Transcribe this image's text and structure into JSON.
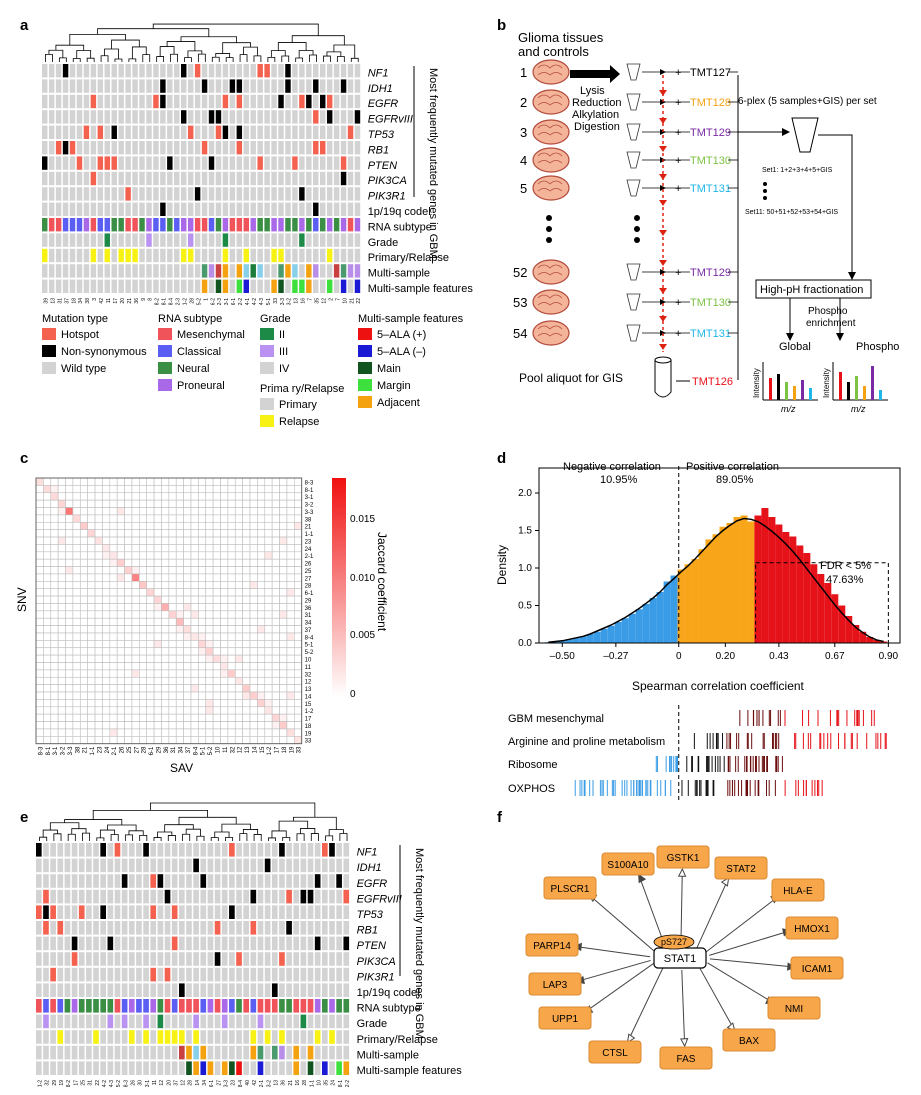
{
  "panel_labels": {
    "a": "a",
    "b": "b",
    "c": "c",
    "d": "d",
    "e": "e",
    "f": "f"
  },
  "colors": {
    "hotspot": "#f4614f",
    "nonsyn": "#000000",
    "wild": "#d3d3d3",
    "mesenchymal": "#f0545a",
    "classical": "#5a5ef2",
    "neural": "#3b8f45",
    "proneural": "#a868e8",
    "gradeII": "#1d8a47",
    "gradeIII": "#b992f2",
    "gradeIV": "#d3d3d3",
    "primary": "#d3d3d3",
    "relapse": "#f7f214",
    "ala_pos": "#ee1111",
    "ala_neg": "#1b1bd6",
    "main": "#11541f",
    "margin": "#3ee03e",
    "adjacent": "#f5a211",
    "tmt127": "#000000",
    "tmt128": "#f5a211",
    "tmt129": "#7a2aa3",
    "tmt130": "#7dc242",
    "tmt131": "#1fb6e8",
    "tmt126": "#e8111a",
    "blue": "#3a9ce6",
    "orange": "#f9a519",
    "red": "#e51219",
    "node": "#f7a64a"
  },
  "panel_a": {
    "gene_rows": [
      "NF1",
      "IDH1",
      "EGFR",
      "EGFRvIII",
      "TP53",
      "RB1",
      "PTEN",
      "PIK3CA",
      "PIK3R1"
    ],
    "other_rows": [
      "1p/19q codel",
      "RNA subtype",
      "Grade",
      "Primary/Relapse",
      "Multi-sample",
      "Multi-sample features"
    ],
    "side_title": "Most frequently mutated genes in GBM",
    "sample_labels": [
      "39",
      "13",
      "31",
      "37",
      "18",
      "34",
      "38",
      "3",
      "42",
      "11",
      "17",
      "20",
      "21",
      "36",
      "9",
      "8",
      "8-2",
      "8-1",
      "8-4",
      "2-3",
      "1-2",
      "28",
      "5-2",
      "1",
      "6-2",
      "2-3",
      "3-1",
      "6-1",
      "2-2",
      "4-1",
      "4-2",
      "4-3",
      "5-1",
      "33",
      "3-3",
      "3-2",
      "13",
      "16",
      "7",
      "35",
      "12",
      "2",
      "7",
      "10",
      "21",
      "22"
    ]
  },
  "legend": {
    "mutation_title": "Mutation type",
    "mutation": [
      "Hotspot",
      "Non-synonymous",
      "Wild type"
    ],
    "rna_title": "RNA subtype",
    "rna": [
      "Mesenchymal",
      "Classical",
      "Neural",
      "Proneural"
    ],
    "grade_title": "Grade",
    "grade": [
      "II",
      "III",
      "IV"
    ],
    "pr_title": "Prima ry/Relapse",
    "pr": [
      "Primary",
      "Relapse"
    ],
    "ms_title": "Multi-sample features",
    "ms": [
      "5–ALA (+)",
      "5–ALA (–)",
      "Main",
      "Margin",
      "Adjacent"
    ]
  },
  "panel_b": {
    "title1": "Glioma tissues",
    "title2": "and controls",
    "sample_numbers": [
      "1",
      "2",
      "3",
      "4",
      "5",
      "52",
      "53",
      "54"
    ],
    "steps": [
      "Lysis",
      "Reduction",
      "Alkylation",
      "Digestion"
    ],
    "tmt_top": [
      "TMT127",
      "TMT128",
      "TMT129",
      "TMT130",
      "TMT131"
    ],
    "tmt_bottom": [
      "TMT129",
      "TMT130",
      "TMT131"
    ],
    "tmt_gis": "TMT126",
    "pool": "Pool aliquot for GIS",
    "plex": "6-plex (5 samples+GIS) per set",
    "set1": "Set1: 1+2+3+4+5+GIS",
    "set11": "Set11: 50+51+52+53+54+GIS",
    "fractionation": "High-pH fractionation",
    "phospho_enrich": "Phospho enrichment",
    "global": "Global",
    "phospho": "Phospho",
    "intensity": "Intensity",
    "mz": "m/z"
  },
  "panel_c": {
    "xlabel": "SAV",
    "ylabel": "SNV",
    "colorbar_label": "Jaccard coefficient",
    "colorbar_ticks": [
      "0.015",
      "0.010",
      "0.005",
      "0"
    ],
    "row_labels": [
      "8-3",
      "8-1",
      "3-1",
      "3-2",
      "3-3",
      "38",
      "21",
      "1-1",
      "23",
      "24",
      "2-1",
      "26",
      "25",
      "27",
      "28",
      "6-1",
      "29",
      "36",
      "31",
      "34",
      "37",
      "8-4",
      "5-1",
      "5-2",
      "10",
      "11",
      "32",
      "12",
      "13",
      "14",
      "15",
      "1-2",
      "17",
      "18",
      "19",
      "33"
    ],
    "col_labels": [
      "8-3",
      "8-1",
      "3-1",
      "3-2",
      "3-3",
      "38",
      "21",
      "1-1",
      "23",
      "24",
      "2-1",
      "26",
      "25",
      "27",
      "28",
      "6-1",
      "29",
      "36",
      "31",
      "34",
      "37",
      "8-4",
      "5-1",
      "5-2",
      "10",
      "11",
      "32",
      "12",
      "13",
      "14",
      "15",
      "1-2",
      "17",
      "18",
      "19",
      "33"
    ]
  },
  "chart_data": {
    "type": "bar",
    "title": "",
    "xlabel": "Spearman correlation coefficient",
    "ylabel": "Density",
    "x_ticks": [
      "–0.50",
      "–0.27",
      "0",
      "0.20",
      "0.43",
      "0.67",
      "0.90"
    ],
    "y_ticks": [
      "0.0",
      "0.5",
      "1.0",
      "1.5",
      "2.0"
    ],
    "xlim": [
      -0.6,
      0.95
    ],
    "ylim": [
      0,
      2.2
    ],
    "negative_label": "Negative correlation",
    "negative_pct": "10.95%",
    "positive_label": "Positive correlation",
    "positive_pct": "89.05%",
    "fdr_label": "FDR < 5%",
    "fdr_pct": "47.63%",
    "x": [
      -0.56,
      -0.53,
      -0.5,
      -0.47,
      -0.44,
      -0.41,
      -0.38,
      -0.35,
      -0.32,
      -0.29,
      -0.26,
      -0.23,
      -0.2,
      -0.17,
      -0.14,
      -0.11,
      -0.08,
      -0.05,
      -0.02,
      0.01,
      0.04,
      0.07,
      0.1,
      0.13,
      0.16,
      0.19,
      0.22,
      0.25,
      0.28,
      0.31,
      0.34,
      0.37,
      0.4,
      0.43,
      0.46,
      0.49,
      0.52,
      0.55,
      0.58,
      0.61,
      0.64,
      0.67,
      0.7,
      0.73,
      0.76,
      0.79,
      0.82,
      0.85,
      0.88
    ],
    "values": [
      0.01,
      0.02,
      0.03,
      0.05,
      0.07,
      0.09,
      0.12,
      0.15,
      0.19,
      0.23,
      0.28,
      0.33,
      0.39,
      0.45,
      0.52,
      0.6,
      0.68,
      0.82,
      0.9,
      0.98,
      1.05,
      1.12,
      1.25,
      1.38,
      1.45,
      1.55,
      1.6,
      1.68,
      1.7,
      1.62,
      1.7,
      1.8,
      1.68,
      1.58,
      1.48,
      1.42,
      1.3,
      1.2,
      1.05,
      0.92,
      0.8,
      0.65,
      0.5,
      0.36,
      0.24,
      0.15,
      0.08,
      0.04,
      0.02
    ],
    "density_curve": [
      0.01,
      0.02,
      0.03,
      0.05,
      0.07,
      0.09,
      0.12,
      0.16,
      0.2,
      0.24,
      0.29,
      0.34,
      0.4,
      0.46,
      0.53,
      0.6,
      0.68,
      0.78,
      0.86,
      0.95,
      1.03,
      1.12,
      1.22,
      1.32,
      1.42,
      1.5,
      1.57,
      1.63,
      1.66,
      1.65,
      1.62,
      1.56,
      1.49,
      1.41,
      1.32,
      1.22,
      1.11,
      0.99,
      0.87,
      0.75,
      0.63,
      0.51,
      0.4,
      0.3,
      0.21,
      0.14,
      0.08,
      0.04,
      0.02
    ],
    "pathways": [
      "GBM mesenchymal",
      "Arginine and proline metabolism",
      "Ribosome",
      "OXPHOS"
    ]
  },
  "panel_e": {
    "gene_rows": [
      "NF1",
      "IDH1",
      "EGFR",
      "EGFRvIII",
      "TP53",
      "RB1",
      "PTEN",
      "PIK3CA",
      "PIK3R1"
    ],
    "other_rows": [
      "1p/19q codel",
      "RNA subtype",
      "Grade",
      "Primary/Relapse",
      "Multi-sample",
      "Multi-sample features"
    ],
    "side_title": "Most frequently mutated genes in GBM",
    "sample_labels": [
      "1-2",
      "32",
      "29",
      "19",
      "8-2",
      "17",
      "25",
      "31",
      "22",
      "4-2",
      "4-3",
      "5-2",
      "8-3",
      "26",
      "30",
      "3-1",
      "11",
      "12",
      "20",
      "37",
      "12",
      "28",
      "14",
      "34",
      "6-1",
      "27",
      "3-3",
      "23",
      "8-4",
      "40",
      "42",
      "2-1",
      "3-2",
      "13",
      "36",
      "21",
      "16",
      "28",
      "1-1",
      "10",
      "35",
      "24",
      "8-1",
      "2-2"
    ]
  },
  "panel_f": {
    "center": "STAT1",
    "site": "pS727",
    "targets": [
      "PLSCR1",
      "S100A10",
      "GSTK1",
      "STAT2",
      "HLA-E",
      "HMOX1",
      "ICAM1",
      "NMI",
      "BAX",
      "FAS",
      "CTSL",
      "UPP1",
      "LAP3",
      "PARP14"
    ]
  }
}
